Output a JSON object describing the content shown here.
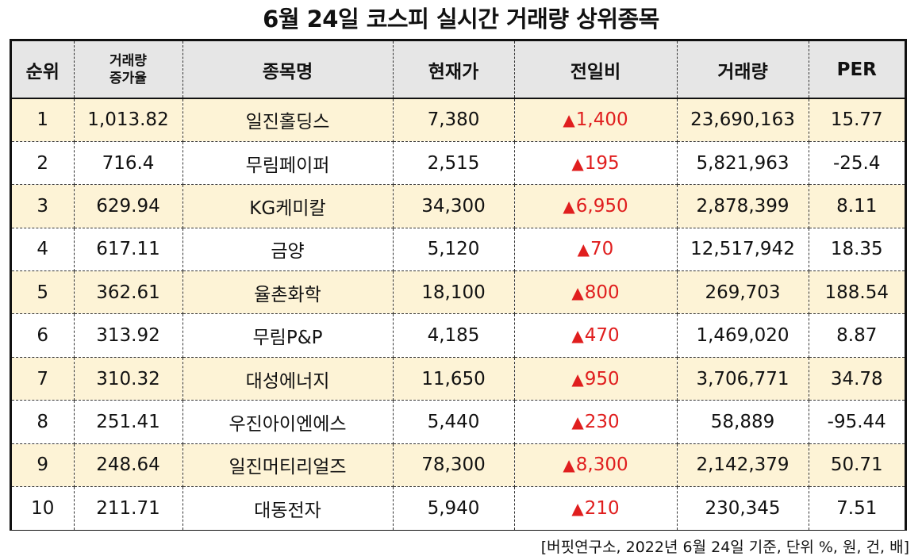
{
  "title": "6월 24일 코스피 실시간 거래량 상위종목",
  "headers": {
    "rank": "순위",
    "volume_increase_line1": "거래량",
    "volume_increase_line2": "증가율",
    "name": "종목명",
    "price": "현재가",
    "change": "전일비",
    "volume": "거래량",
    "per": "PER"
  },
  "change_symbol": "▲",
  "rows": [
    {
      "rank": "1",
      "increase": "1,013.82",
      "name": "일진홀딩스",
      "price": "7,380",
      "change": "1,400",
      "volume": "23,690,163",
      "per": "15.77"
    },
    {
      "rank": "2",
      "increase": "716.4",
      "name": "무림페이퍼",
      "price": "2,515",
      "change": "195",
      "volume": "5,821,963",
      "per": "-25.4"
    },
    {
      "rank": "3",
      "increase": "629.94",
      "name": "KG케미칼",
      "price": "34,300",
      "change": "6,950",
      "volume": "2,878,399",
      "per": "8.11"
    },
    {
      "rank": "4",
      "increase": "617.11",
      "name": "금양",
      "price": "5,120",
      "change": "70",
      "volume": "12,517,942",
      "per": "18.35"
    },
    {
      "rank": "5",
      "increase": "362.61",
      "name": "율촌화학",
      "price": "18,100",
      "change": "800",
      "volume": "269,703",
      "per": "188.54"
    },
    {
      "rank": "6",
      "increase": "313.92",
      "name": "무림P&P",
      "price": "4,185",
      "change": "470",
      "volume": "1,469,020",
      "per": "8.87"
    },
    {
      "rank": "7",
      "increase": "310.32",
      "name": "대성에너지",
      "price": "11,650",
      "change": "950",
      "volume": "3,706,771",
      "per": "34.78"
    },
    {
      "rank": "8",
      "increase": "251.41",
      "name": "우진아이엔에스",
      "price": "5,440",
      "change": "230",
      "volume": "58,889",
      "per": "-95.44"
    },
    {
      "rank": "9",
      "increase": "248.64",
      "name": "일진머티리얼즈",
      "price": "78,300",
      "change": "8,300",
      "volume": "2,142,379",
      "per": "50.71"
    },
    {
      "rank": "10",
      "increase": "211.71",
      "name": "대동전자",
      "price": "5,940",
      "change": "210",
      "volume": "230,345",
      "per": "7.51"
    }
  ],
  "colors": {
    "header_bg": "#e6e6e6",
    "odd_row_bg": "#fdf3d6",
    "even_row_bg": "#ffffff",
    "up_color": "#e01e1e"
  },
  "footnote": "[버핏연구소, 2022년 6월 24일 기준, 단위 %, 원, 건, 배]"
}
